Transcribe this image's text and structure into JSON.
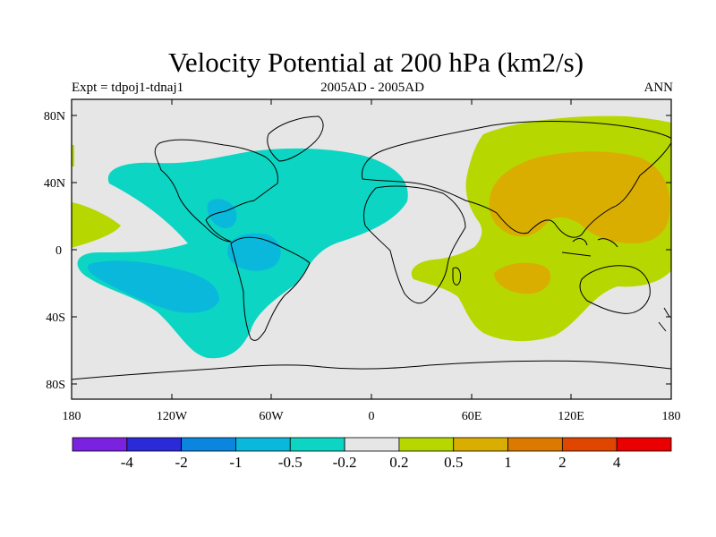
{
  "title": "Velocity Potential at 200 hPa (km2/s)",
  "left_string": "Expt = tdpoj1-tdnaj1",
  "center_string": "2005AD - 2005AD",
  "right_string": "ANN",
  "y_axis_labels": [
    "80N",
    "40N",
    "0",
    "40S",
    "80S"
  ],
  "x_axis_labels": [
    "180",
    "120W",
    "60W",
    "0",
    "60E",
    "120E",
    "180"
  ],
  "colorbar": {
    "colors": [
      "#7b22e0",
      "#2a2ad8",
      "#0a86de",
      "#0ab8dc",
      "#0cd5c3",
      "#e6e6e6",
      "#b6d800",
      "#d9ae00",
      "#dc7a00",
      "#e04600",
      "#ea0000"
    ],
    "labels": [
      "-4",
      "-2",
      "-1",
      "-0.5",
      "-0.2",
      "0.2",
      "0.5",
      "1",
      "2",
      "4"
    ]
  },
  "colors": {
    "background": "#e6e6e6",
    "neg_light": "#0cd5c3",
    "neg_mid": "#0ab8dc",
    "pos_light": "#b6d800",
    "pos_mid": "#d9ae00"
  }
}
